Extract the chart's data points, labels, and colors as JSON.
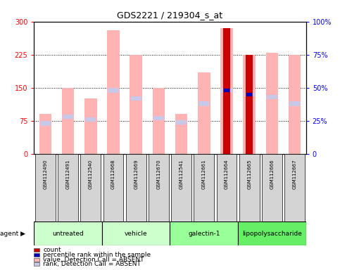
{
  "title": "GDS2221 / 219304_s_at",
  "samples": [
    "GSM112490",
    "GSM112491",
    "GSM112540",
    "GSM112668",
    "GSM112669",
    "GSM112670",
    "GSM112541",
    "GSM112661",
    "GSM112664",
    "GSM112665",
    "GSM112666",
    "GSM112667"
  ],
  "pink_bar_values": [
    90,
    150,
    125,
    280,
    225,
    150,
    90,
    185,
    285,
    225,
    230,
    225
  ],
  "blue_rank_values": [
    23,
    28,
    26,
    48,
    42,
    27,
    24,
    38,
    48,
    45,
    43,
    38
  ],
  "red_bar_values": [
    0,
    0,
    0,
    0,
    0,
    0,
    0,
    0,
    285,
    225,
    0,
    0
  ],
  "blue_dot_samples": [
    8,
    9
  ],
  "blue_dot_values": [
    48,
    45
  ],
  "ylim_left": [
    0,
    300
  ],
  "ylim_right": [
    0,
    100
  ],
  "yticks_left": [
    0,
    75,
    150,
    225,
    300
  ],
  "yticks_right": [
    0,
    25,
    50,
    75,
    100
  ],
  "pink_color": "#ffb3b3",
  "lavender_color": "#c8c8e8",
  "red_color": "#cc0000",
  "dark_blue_color": "#0000bb",
  "bg_color": "#ffffff",
  "bar_width": 0.55,
  "group_boundaries": [
    [
      0,
      3,
      "untreated",
      "#ccffcc"
    ],
    [
      3,
      6,
      "vehicle",
      "#ccffcc"
    ],
    [
      6,
      9,
      "galectin-1",
      "#99ff99"
    ],
    [
      9,
      12,
      "lipopolysaccharide",
      "#66ee66"
    ]
  ],
  "legend_items": [
    {
      "label": "count",
      "color": "#cc0000"
    },
    {
      "label": "percentile rank within the sample",
      "color": "#0000bb"
    },
    {
      "label": "value, Detection Call = ABSENT",
      "color": "#ffb3b3"
    },
    {
      "label": "rank, Detection Call = ABSENT",
      "color": "#c8c8e8"
    }
  ]
}
